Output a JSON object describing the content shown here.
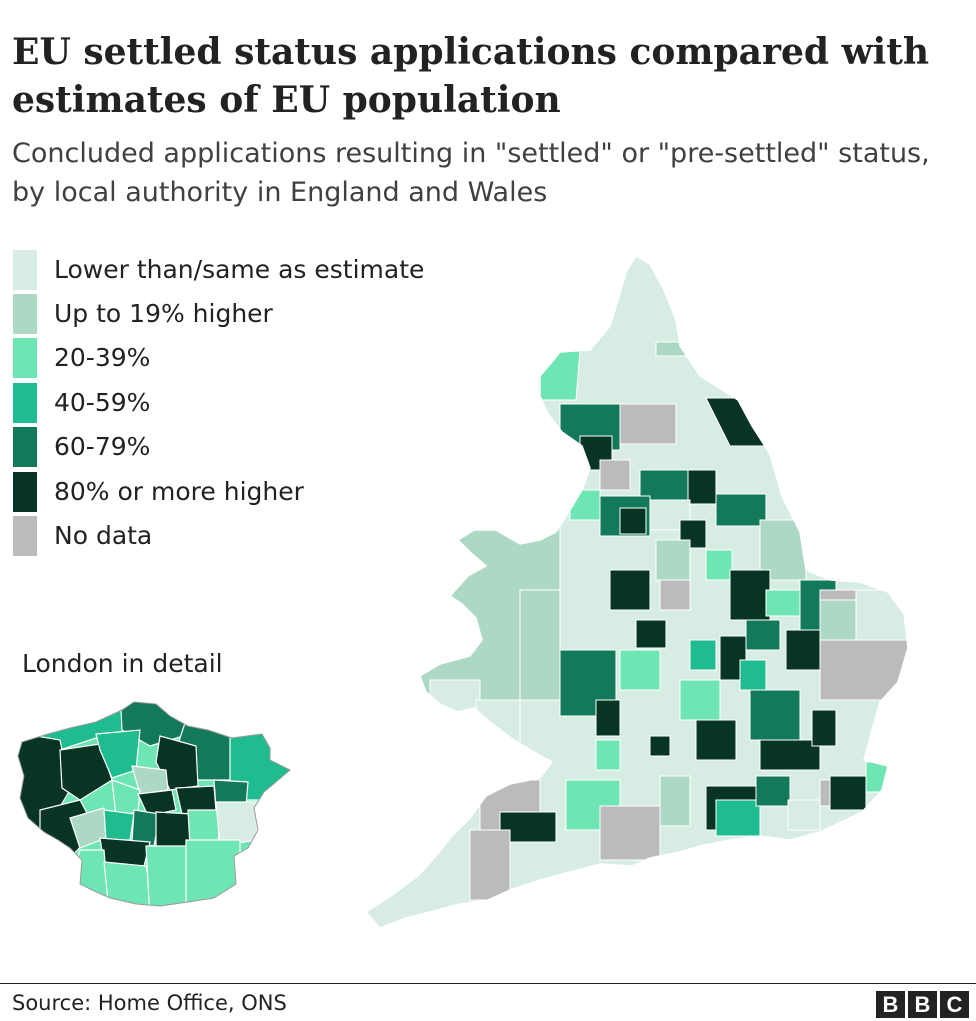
{
  "title": "EU settled status applications compared with estimates of EU population",
  "subtitle": "Concluded applications resulting in \"settled\" or \"pre-settled\" status, by local authority in England and Wales",
  "legend": {
    "items": [
      {
        "label": "Lower than/same as estimate",
        "color": "#d7ede3"
      },
      {
        "label": "Up to 19% higher",
        "color": "#acd8c4"
      },
      {
        "label": "20-39%",
        "color": "#6ee6b3"
      },
      {
        "label": "40-59%",
        "color": "#1fbc8f"
      },
      {
        "label": "60-79%",
        "color": "#12795a"
      },
      {
        "label": "80% or more higher",
        "color": "#083424"
      },
      {
        "label": "No data",
        "color": "#bbbbbd"
      }
    ]
  },
  "london_inset": {
    "label": "London in detail"
  },
  "source": "Source: Home Office, ONS",
  "logo": {
    "letters": [
      "B",
      "B",
      "C"
    ]
  }
}
